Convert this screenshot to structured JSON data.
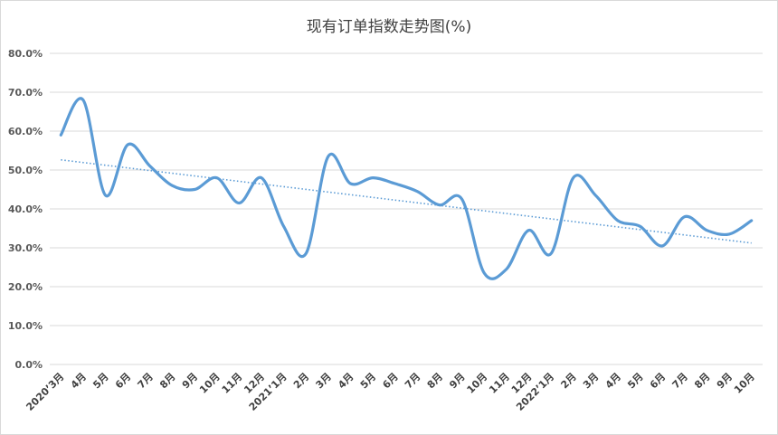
{
  "chart_data": {
    "type": "line",
    "title": "现有订单指数走势图(%)",
    "xlabel": "",
    "ylabel": "",
    "categories": [
      "2020’3月",
      "4月",
      "5月",
      "6月",
      "7月",
      "8月",
      "9月",
      "10月",
      "11月",
      "12月",
      "2021’1月",
      "2月",
      "3月",
      "4月",
      "5月",
      "6月",
      "7月",
      "8月",
      "9月",
      "10月",
      "11月",
      "12月",
      "2022’1月",
      "2月",
      "3月",
      "4月",
      "5月",
      "6月",
      "7月",
      "8月",
      "9月",
      "10月"
    ],
    "series": [
      {
        "values": [
          59.0,
          68.0,
          43.5,
          56.5,
          51.0,
          46.0,
          45.0,
          48.0,
          41.5,
          48.0,
          35.5,
          28.5,
          53.5,
          46.5,
          48.0,
          46.5,
          44.5,
          41.0,
          42.5,
          23.5,
          24.5,
          34.5,
          28.5,
          48.0,
          43.5,
          37.0,
          35.5,
          30.5,
          38.0,
          34.5,
          33.5,
          37.0
        ],
        "color": "#5b9bd5"
      }
    ],
    "trendline": {
      "type": "linear",
      "style": "dotted",
      "color": "#5b9bd5"
    },
    "ylim": [
      0,
      80
    ],
    "yticks": [
      "0.0%",
      "10.0%",
      "20.0%",
      "30.0%",
      "40.0%",
      "50.0%",
      "60.0%",
      "70.0%",
      "80.0%"
    ],
    "grid": true,
    "legend": "none"
  }
}
